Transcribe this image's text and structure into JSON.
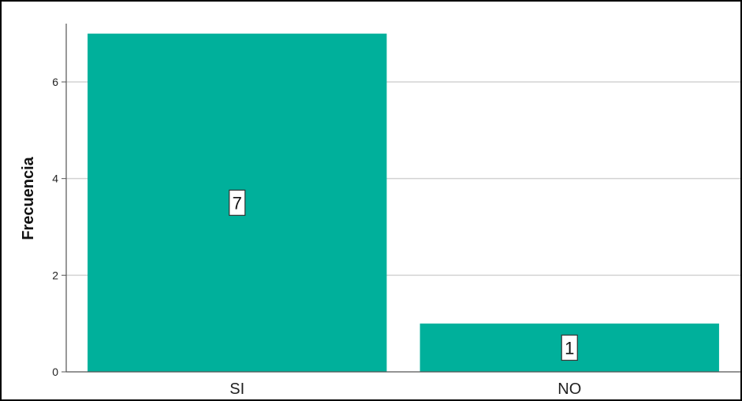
{
  "chart_data": {
    "type": "bar",
    "categories": [
      "SI",
      "NO"
    ],
    "values": [
      7,
      1
    ],
    "data_labels": [
      "7",
      "1"
    ],
    "title": "",
    "xlabel": "",
    "ylabel": "Frecuencia",
    "ylim": [
      0,
      7.5
    ],
    "yticks": [
      0,
      2,
      4,
      6
    ],
    "grid": "horizontal",
    "colors": {
      "bar": "#00B09B",
      "grid": "#d3d3d3",
      "axis": "#555555"
    }
  }
}
